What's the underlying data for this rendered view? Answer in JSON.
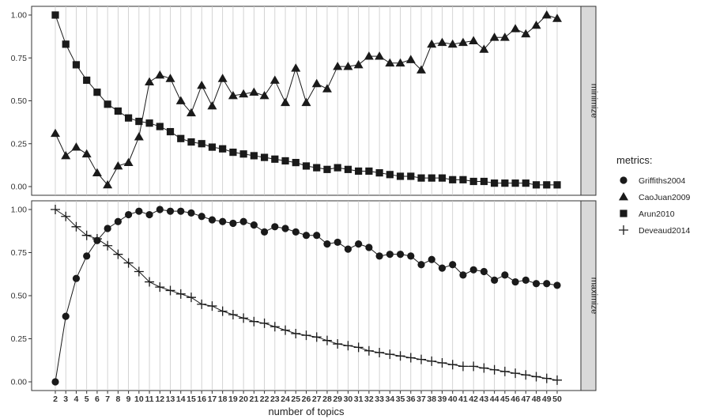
{
  "chart_data": {
    "type": "line",
    "xlabel": "number of topics",
    "x": [
      2,
      3,
      4,
      5,
      6,
      7,
      8,
      9,
      10,
      11,
      12,
      13,
      14,
      15,
      16,
      17,
      18,
      19,
      20,
      21,
      22,
      23,
      24,
      25,
      26,
      27,
      28,
      29,
      30,
      31,
      32,
      33,
      34,
      35,
      36,
      37,
      38,
      39,
      40,
      41,
      42,
      43,
      44,
      45,
      46,
      47,
      48,
      49,
      50
    ],
    "legend": {
      "title": "metrics:",
      "entries": [
        {
          "name": "Griffiths2004",
          "marker": "circle"
        },
        {
          "name": "CaoJuan2009",
          "marker": "triangle"
        },
        {
          "name": "Arun2010",
          "marker": "square"
        },
        {
          "name": "Deveaud2014",
          "marker": "plus"
        }
      ]
    },
    "y_ticks": [
      "0.00",
      "0.25",
      "0.50",
      "0.75",
      "1.00"
    ],
    "ylim": [
      0,
      1
    ],
    "grid": "vertical lines at each x value",
    "panels": [
      {
        "strip": "minimize",
        "series": [
          {
            "name": "CaoJuan2009",
            "marker": "triangle",
            "values": [
              0.31,
              0.18,
              0.23,
              0.19,
              0.08,
              0.01,
              0.12,
              0.14,
              0.29,
              0.61,
              0.65,
              0.63,
              0.5,
              0.43,
              0.59,
              0.47,
              0.63,
              0.53,
              0.54,
              0.55,
              0.53,
              0.62,
              0.49,
              0.69,
              0.49,
              0.6,
              0.57,
              0.7,
              0.7,
              0.71,
              0.76,
              0.76,
              0.72,
              0.72,
              0.74,
              0.68,
              0.83,
              0.84,
              0.83,
              0.84,
              0.85,
              0.8,
              0.87,
              0.87,
              0.92,
              0.89,
              0.94,
              1.0,
              0.98
            ]
          },
          {
            "name": "Arun2010",
            "marker": "square",
            "values": [
              1.0,
              0.83,
              0.71,
              0.62,
              0.55,
              0.48,
              0.44,
              0.4,
              0.38,
              0.37,
              0.35,
              0.32,
              0.28,
              0.26,
              0.25,
              0.23,
              0.22,
              0.2,
              0.19,
              0.18,
              0.17,
              0.16,
              0.15,
              0.14,
              0.12,
              0.11,
              0.1,
              0.11,
              0.1,
              0.09,
              0.09,
              0.08,
              0.07,
              0.06,
              0.06,
              0.05,
              0.05,
              0.05,
              0.04,
              0.04,
              0.03,
              0.03,
              0.02,
              0.02,
              0.02,
              0.02,
              0.01,
              0.01,
              0.01
            ]
          }
        ]
      },
      {
        "strip": "maximize",
        "series": [
          {
            "name": "Griffiths2004",
            "marker": "circle",
            "values": [
              0.0,
              0.38,
              0.6,
              0.73,
              0.82,
              0.89,
              0.93,
              0.97,
              0.99,
              0.97,
              1.0,
              0.99,
              0.99,
              0.98,
              0.96,
              0.94,
              0.93,
              0.92,
              0.93,
              0.91,
              0.87,
              0.9,
              0.89,
              0.87,
              0.85,
              0.85,
              0.8,
              0.81,
              0.77,
              0.8,
              0.78,
              0.73,
              0.74,
              0.74,
              0.73,
              0.68,
              0.71,
              0.66,
              0.68,
              0.62,
              0.65,
              0.64,
              0.59,
              0.62,
              0.58,
              0.59,
              0.57,
              0.57,
              0.56
            ]
          },
          {
            "name": "Deveaud2014",
            "marker": "plus",
            "values": [
              1.0,
              0.96,
              0.9,
              0.85,
              0.83,
              0.79,
              0.74,
              0.69,
              0.64,
              0.58,
              0.55,
              0.53,
              0.51,
              0.49,
              0.45,
              0.44,
              0.41,
              0.39,
              0.37,
              0.35,
              0.34,
              0.32,
              0.3,
              0.28,
              0.27,
              0.26,
              0.24,
              0.22,
              0.21,
              0.2,
              0.18,
              0.17,
              0.16,
              0.15,
              0.14,
              0.13,
              0.12,
              0.11,
              0.1,
              0.09,
              0.09,
              0.08,
              0.07,
              0.06,
              0.05,
              0.04,
              0.03,
              0.02,
              0.01
            ]
          }
        ]
      }
    ]
  }
}
